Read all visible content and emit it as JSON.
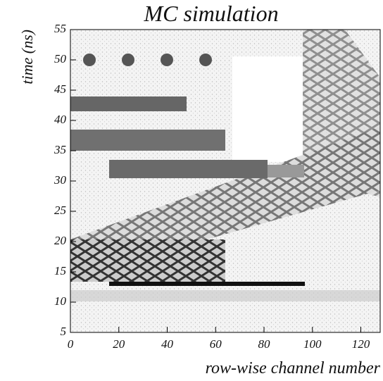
{
  "chart_data": {
    "type": "heatmap",
    "title": "MC simulation",
    "xlabel": "row-wise channel number",
    "ylabel": "time (ns)",
    "xlim": [
      0,
      128
    ],
    "ylim": [
      5,
      55
    ],
    "xticks": [
      0,
      20,
      40,
      60,
      80,
      100,
      120
    ],
    "yticks": [
      5,
      10,
      15,
      20,
      25,
      30,
      35,
      40,
      45,
      50,
      55
    ]
  }
}
